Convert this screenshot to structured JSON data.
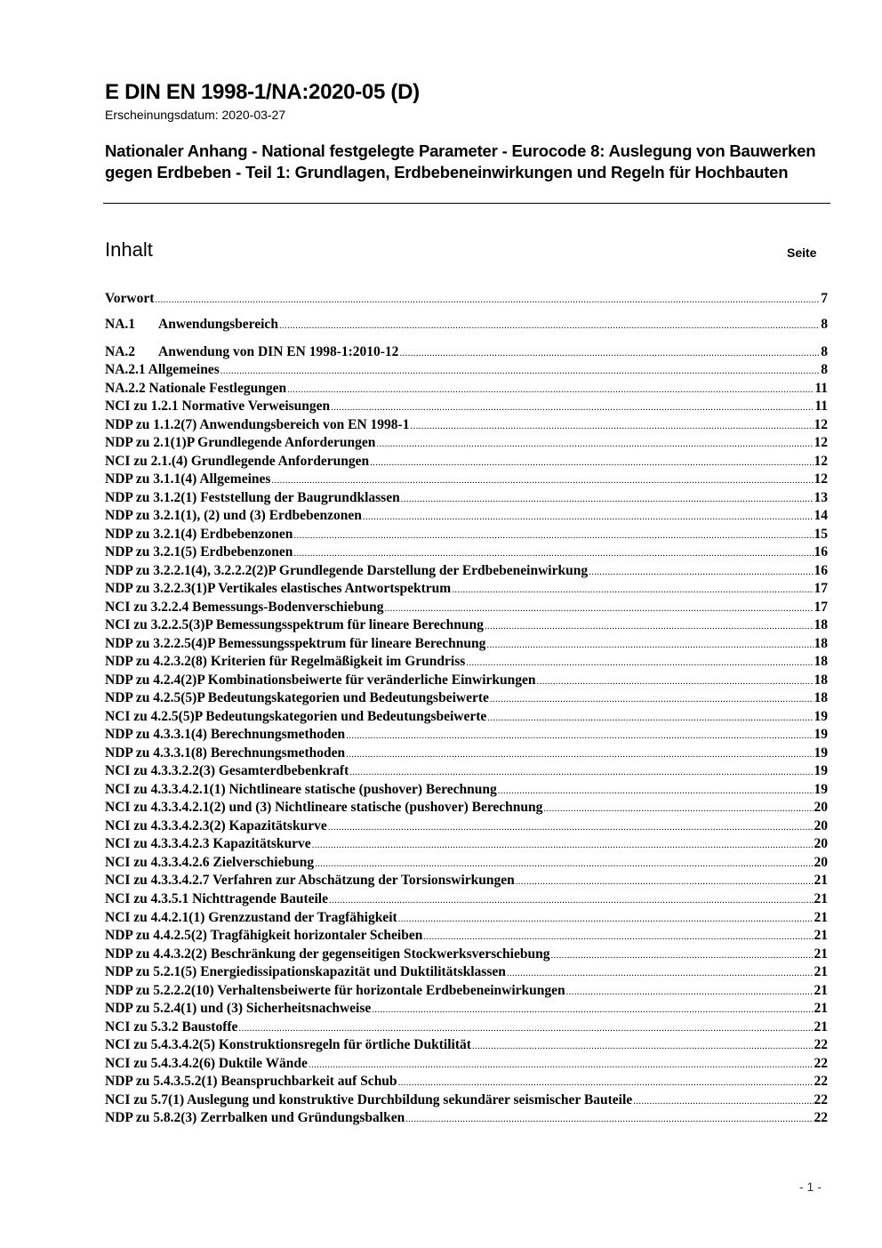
{
  "header": {
    "title": "E DIN EN 1998-1/NA:2020-05 (D)",
    "date": "Erscheinungsdatum: 2020-03-27",
    "subtitle": "Nationaler Anhang - National festgelegte Parameter - Eurocode 8: Auslegung von Bauwerken gegen Erdbeben - Teil 1: Grundlagen, Erdbebeneinwirkungen und Regeln für Hochbauten"
  },
  "toc": {
    "heading": "Inhalt",
    "page_label": "Seite",
    "entries": [
      {
        "num": "",
        "label": "Vorwort",
        "page": "7"
      },
      {
        "num": "NA.1",
        "label": "Anwendungsbereich",
        "page": "8"
      },
      {
        "num": "NA.2",
        "label": "Anwendung von DIN EN 1998-1:2010-12",
        "page": "8"
      },
      {
        "num": "",
        "label": "NA.2.1  Allgemeines",
        "page": "8"
      },
      {
        "num": "",
        "label": "NA.2.2  Nationale Festlegungen",
        "page": "11"
      },
      {
        "num": "",
        "label": "NCI zu 1.2.1 Normative Verweisungen",
        "page": "11"
      },
      {
        "num": "",
        "label": "NDP zu 1.1.2(7) Anwendungsbereich von EN 1998-1",
        "page": "12"
      },
      {
        "num": "",
        "label": "NDP zu 2.1(1)P Grundlegende Anforderungen",
        "page": "12"
      },
      {
        "num": "",
        "label": "NCI zu 2.1.(4) Grundlegende Anforderungen",
        "page": "12"
      },
      {
        "num": "",
        "label": "NDP zu 3.1.1(4) Allgemeines",
        "page": "12"
      },
      {
        "num": "",
        "label": "NDP zu 3.1.2(1) Feststellung der Baugrundklassen",
        "page": "13"
      },
      {
        "num": "",
        "label": "NDP zu 3.2.1(1), (2) und (3) Erdbebenzonen",
        "page": "14"
      },
      {
        "num": "",
        "label": "NDP zu 3.2.1(4) Erdbebenzonen",
        "page": "15"
      },
      {
        "num": "",
        "label": "NDP zu 3.2.1(5) Erdbebenzonen",
        "page": "16"
      },
      {
        "num": "",
        "label": "NDP zu 3.2.2.1(4), 3.2.2.2(2)P Grundlegende Darstellung der Erdbebeneinwirkung",
        "page": "16"
      },
      {
        "num": "",
        "label": "NDP zu 3.2.2.3(1)P Vertikales elastisches Antwortspektrum",
        "page": "17"
      },
      {
        "num": "",
        "label": "NCI zu 3.2.2.4 Bemessungs-Bodenverschiebung",
        "page": "17"
      },
      {
        "num": "",
        "label": "NCI zu 3.2.2.5(3)P Bemessungsspektrum für lineare Berechnung",
        "page": "18"
      },
      {
        "num": "",
        "label": "NDP zu 3.2.2.5(4)P Bemessungsspektrum für lineare Berechnung",
        "page": "18"
      },
      {
        "num": "",
        "label": "NDP zu 4.2.3.2(8) Kriterien für Regelmäßigkeit im Grundriss",
        "page": "18"
      },
      {
        "num": "",
        "label": "NDP zu 4.2.4(2)P Kombinationsbeiwerte für veränderliche Einwirkungen",
        "page": "18"
      },
      {
        "num": "",
        "label": "NDP zu 4.2.5(5)P Bedeutungskategorien und Bedeutungsbeiwerte",
        "page": "18"
      },
      {
        "num": "",
        "label": "NCI zu 4.2.5(5)P Bedeutungskategorien und Bedeutungsbeiwerte",
        "page": "19"
      },
      {
        "num": "",
        "label": "NDP zu 4.3.3.1(4) Berechnungsmethoden",
        "page": "19"
      },
      {
        "num": "",
        "label": "NDP zu 4.3.3.1(8) Berechnungsmethoden",
        "page": "19"
      },
      {
        "num": "",
        "label": "NCI zu 4.3.3.2.2(3) Gesamterdbebenkraft",
        "page": "19"
      },
      {
        "num": "",
        "label": "NCI zu 4.3.3.4.2.1(1) Nichtlineare statische (pushover) Berechnung",
        "page": "19"
      },
      {
        "num": "",
        "label": "NCI zu 4.3.3.4.2.1(2) und (3) Nichtlineare statische (pushover) Berechnung",
        "page": "20"
      },
      {
        "num": "",
        "label": "NCI zu 4.3.3.4.2.3(2) Kapazitätskurve",
        "page": "20"
      },
      {
        "num": "",
        "label": "NCI zu 4.3.3.4.2.3 Kapazitätskurve",
        "page": "20"
      },
      {
        "num": "",
        "label": "NCI zu 4.3.3.4.2.6 Zielverschiebung",
        "page": "20"
      },
      {
        "num": "",
        "label": "NCI zu 4.3.3.4.2.7 Verfahren zur Abschätzung der Torsionswirkungen",
        "page": "21"
      },
      {
        "num": "",
        "label": "NCI zu 4.3.5.1 Nichttragende Bauteile",
        "page": "21"
      },
      {
        "num": "",
        "label": "NCI zu 4.4.2.1(1) Grenzzustand der Tragfähigkeit",
        "page": "21"
      },
      {
        "num": "",
        "label": "NDP zu 4.4.2.5(2) Tragfähigkeit horizontaler Scheiben",
        "page": "21"
      },
      {
        "num": "",
        "label": "NDP zu 4.4.3.2(2) Beschränkung der gegenseitigen Stockwerksverschiebung",
        "page": "21"
      },
      {
        "num": "",
        "label": "NDP zu 5.2.1(5) Energiedissipationskapazität und Duktilitätsklassen",
        "page": "21"
      },
      {
        "num": "",
        "label": "NDP zu 5.2.2.2(10) Verhaltensbeiwerte für horizontale Erdbebeneinwirkungen",
        "page": "21"
      },
      {
        "num": "",
        "label": "NDP zu 5.2.4(1) und (3) Sicherheitsnachweise",
        "page": "21"
      },
      {
        "num": "",
        "label": "NCI zu 5.3.2 Baustoffe",
        "page": "21"
      },
      {
        "num": "",
        "label": "NCI zu 5.4.3.4.2(5) Konstruktionsregeln für örtliche Duktilität",
        "page": "22"
      },
      {
        "num": "",
        "label": "NCI zu 5.4.3.4.2(6) Duktile Wände",
        "page": "22"
      },
      {
        "num": "",
        "label": "NDP zu 5.4.3.5.2(1) Beanspruchbarkeit auf Schub",
        "page": "22"
      },
      {
        "num": "",
        "label": "NCI zu 5.7(1) Auslegung und konstruktive Durchbildung sekundärer seismischer Bauteile",
        "page": "22"
      },
      {
        "num": "",
        "label": "NDP zu 5.8.2(3) Zerrbalken und Gründungsbalken",
        "page": "22"
      }
    ]
  },
  "footer": {
    "page_number": "- 1 -"
  }
}
